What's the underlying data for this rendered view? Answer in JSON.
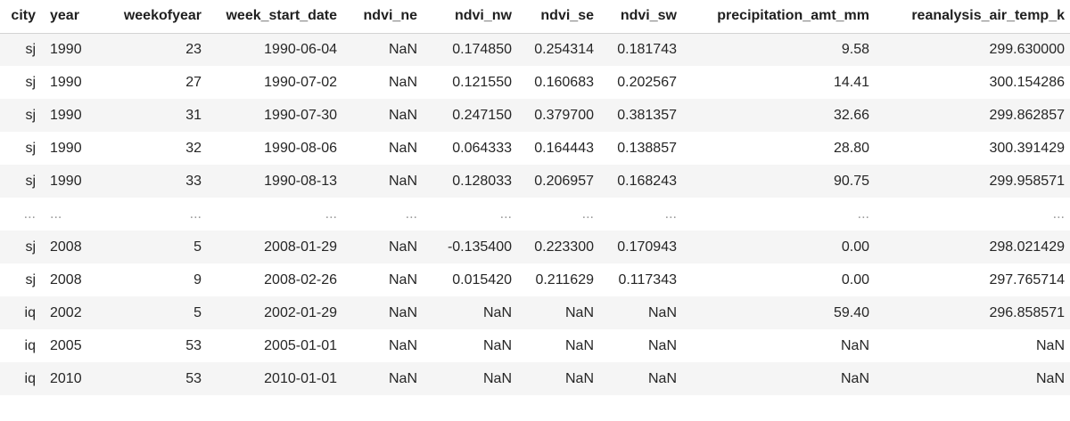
{
  "table": {
    "columns": [
      "city",
      "year",
      "weekofyear",
      "week_start_date",
      "ndvi_ne",
      "ndvi_nw",
      "ndvi_se",
      "ndvi_sw",
      "precipitation_amt_mm",
      "reanalysis_air_temp_k"
    ],
    "rows": [
      [
        "sj",
        "1990",
        "23",
        "1990-06-04",
        "NaN",
        "0.174850",
        "0.254314",
        "0.181743",
        "9.58",
        "299.630000"
      ],
      [
        "sj",
        "1990",
        "27",
        "1990-07-02",
        "NaN",
        "0.121550",
        "0.160683",
        "0.202567",
        "14.41",
        "300.154286"
      ],
      [
        "sj",
        "1990",
        "31",
        "1990-07-30",
        "NaN",
        "0.247150",
        "0.379700",
        "0.381357",
        "32.66",
        "299.862857"
      ],
      [
        "sj",
        "1990",
        "32",
        "1990-08-06",
        "NaN",
        "0.064333",
        "0.164443",
        "0.138857",
        "28.80",
        "300.391429"
      ],
      [
        "sj",
        "1990",
        "33",
        "1990-08-13",
        "NaN",
        "0.128033",
        "0.206957",
        "0.168243",
        "90.75",
        "299.958571"
      ],
      [
        "...",
        "...",
        "...",
        "...",
        "...",
        "...",
        "...",
        "...",
        "...",
        "..."
      ],
      [
        "sj",
        "2008",
        "5",
        "2008-01-29",
        "NaN",
        "-0.135400",
        "0.223300",
        "0.170943",
        "0.00",
        "298.021429"
      ],
      [
        "sj",
        "2008",
        "9",
        "2008-02-26",
        "NaN",
        "0.015420",
        "0.211629",
        "0.117343",
        "0.00",
        "297.765714"
      ],
      [
        "iq",
        "2002",
        "5",
        "2002-01-29",
        "NaN",
        "NaN",
        "NaN",
        "NaN",
        "59.40",
        "296.858571"
      ],
      [
        "iq",
        "2005",
        "53",
        "2005-01-01",
        "NaN",
        "NaN",
        "NaN",
        "NaN",
        "NaN",
        "NaN"
      ],
      [
        "iq",
        "2010",
        "53",
        "2010-01-01",
        "NaN",
        "NaN",
        "NaN",
        "NaN",
        "NaN",
        "NaN"
      ]
    ]
  }
}
